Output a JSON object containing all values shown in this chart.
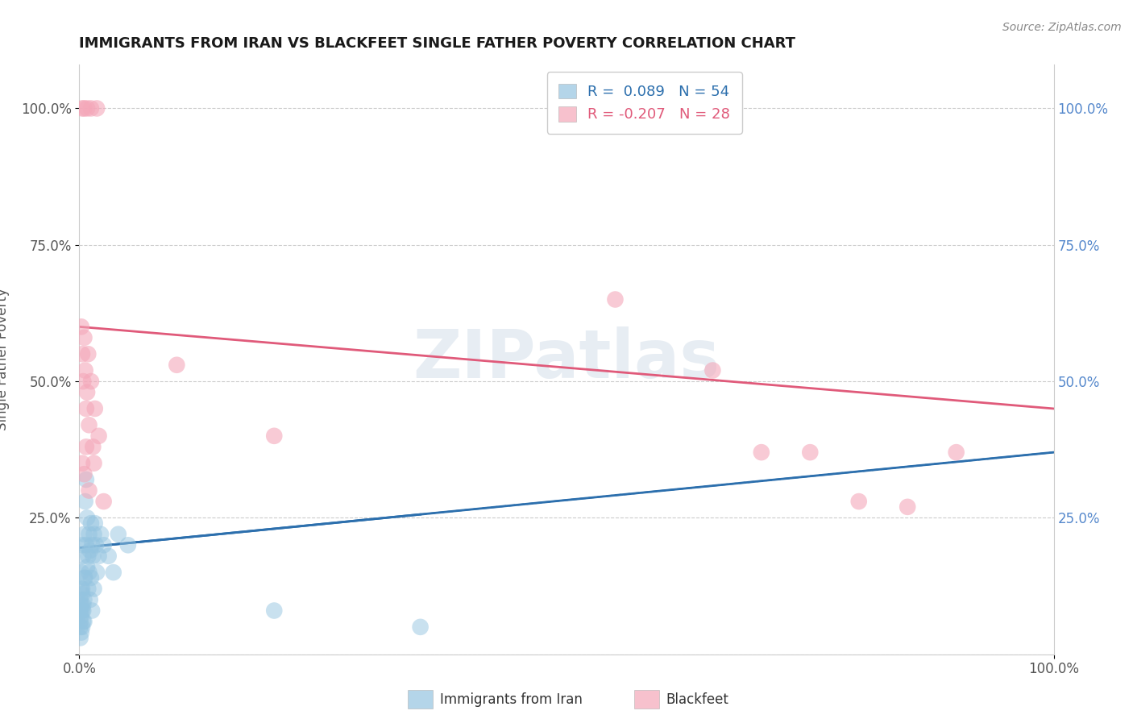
{
  "title": "IMMIGRANTS FROM IRAN VS BLACKFEET SINGLE FATHER POVERTY CORRELATION CHART",
  "source_text": "Source: ZipAtlas.com",
  "ylabel": "Single Father Poverty",
  "legend_blue_r": "R =  0.089",
  "legend_blue_n": "N = 54",
  "legend_pink_r": "R = -0.207",
  "legend_pink_n": "N = 28",
  "legend_label_blue": "Immigrants from Iran",
  "legend_label_pink": "Blackfeet",
  "blue_color": "#94c4e0",
  "pink_color": "#f4a7b9",
  "trend_blue_color": "#2c6fad",
  "trend_pink_color": "#e05a7a",
  "watermark_text": "ZIPatlas",
  "blue_x": [
    0.2,
    0.3,
    0.3,
    0.4,
    0.4,
    0.5,
    0.5,
    0.5,
    0.6,
    0.6,
    0.7,
    0.7,
    0.8,
    0.8,
    0.9,
    0.9,
    1.0,
    1.0,
    1.1,
    1.1,
    1.2,
    1.2,
    1.3,
    1.3,
    1.4,
    1.5,
    1.5,
    1.6,
    1.7,
    1.8,
    2.0,
    2.2,
    2.5,
    3.0,
    3.5,
    4.0,
    0.1,
    0.1,
    0.1,
    0.1,
    0.1,
    0.2,
    0.2,
    0.2,
    0.2,
    0.3,
    0.3,
    0.3,
    0.4,
    0.4,
    0.5,
    5.0,
    20.0,
    35.0
  ],
  "blue_y": [
    15.0,
    12.0,
    20.0,
    18.0,
    8.0,
    22.0,
    10.0,
    6.0,
    28.0,
    14.0,
    32.0,
    20.0,
    25.0,
    16.0,
    18.0,
    12.0,
    22.0,
    15.0,
    19.0,
    10.0,
    24.0,
    14.0,
    20.0,
    8.0,
    18.0,
    22.0,
    12.0,
    24.0,
    20.0,
    15.0,
    18.0,
    22.0,
    20.0,
    18.0,
    15.0,
    22.0,
    5.0,
    8.0,
    3.0,
    6.0,
    10.0,
    4.0,
    7.0,
    12.0,
    9.0,
    5.0,
    8.0,
    11.0,
    6.0,
    9.0,
    14.0,
    20.0,
    8.0,
    5.0
  ],
  "pink_x": [
    0.2,
    0.3,
    0.4,
    0.5,
    0.6,
    0.7,
    0.8,
    0.9,
    1.0,
    1.2,
    1.4,
    1.6,
    2.0,
    0.3,
    0.5,
    0.7,
    1.0,
    1.5,
    2.5,
    55.0,
    65.0,
    70.0,
    75.0,
    80.0,
    85.0,
    90.0,
    10.0,
    20.0
  ],
  "pink_y": [
    60.0,
    55.0,
    50.0,
    58.0,
    52.0,
    45.0,
    48.0,
    55.0,
    42.0,
    50.0,
    38.0,
    45.0,
    40.0,
    35.0,
    33.0,
    38.0,
    30.0,
    35.0,
    28.0,
    65.0,
    52.0,
    37.0,
    37.0,
    28.0,
    27.0,
    37.0,
    53.0,
    40.0
  ],
  "pink_highleft_x": [
    0.3,
    0.5,
    0.8,
    1.2,
    1.8
  ],
  "pink_highleft_y": [
    100.0,
    100.0,
    100.0,
    100.0,
    100.0
  ],
  "xmin": 0.0,
  "xmax": 100.0,
  "ymin": 0.0,
  "ymax": 108.0,
  "yticks": [
    0,
    25,
    50,
    75,
    100
  ],
  "ytick_labels": [
    "",
    "25.0%",
    "50.0%",
    "75.0%",
    "100.0%"
  ],
  "xtick_left": 0.0,
  "xtick_right": 100.0,
  "xtick_label_left": "0.0%",
  "xtick_label_right": "100.0%",
  "trend_blue_x0": 0.0,
  "trend_blue_x1": 100.0,
  "trend_blue_y0": 19.5,
  "trend_blue_y1": 37.0,
  "trend_pink_x0": 0.0,
  "trend_pink_x1": 100.0,
  "trend_pink_y0": 60.0,
  "trend_pink_y1": 45.0
}
